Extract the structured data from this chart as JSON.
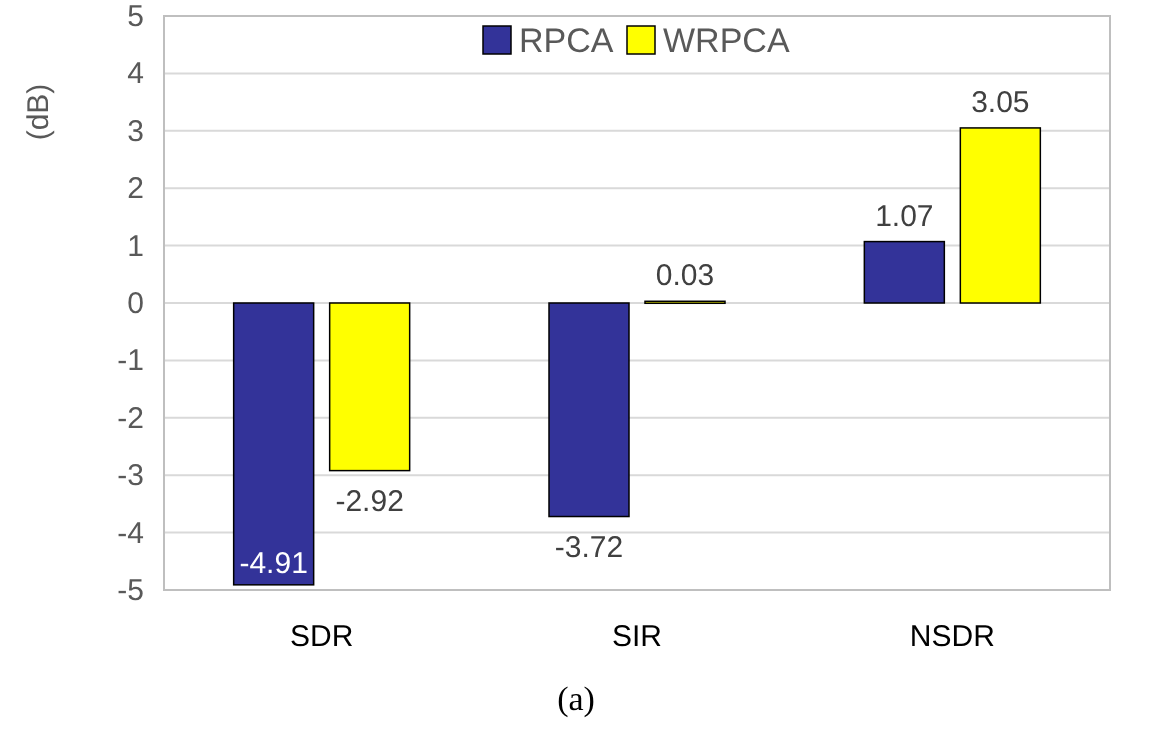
{
  "chart_data": {
    "type": "bar",
    "ylabel": "(dB)",
    "categories": [
      "SDR",
      "SIR",
      "NSDR"
    ],
    "series": [
      {
        "name": "RPCA",
        "color": "#333399",
        "values": [
          -4.91,
          -3.72,
          1.07
        ]
      },
      {
        "name": "WRPCA",
        "color": "#ffff00",
        "values": [
          -2.92,
          0.03,
          3.05
        ]
      }
    ],
    "ylim": [
      -5,
      5
    ],
    "yticks": [
      -5,
      -4,
      -3,
      -2,
      -1,
      0,
      1,
      2,
      3,
      4,
      5
    ],
    "grid": "y",
    "legend": "top",
    "data_labels": true,
    "annotations": [
      "(a)"
    ]
  }
}
